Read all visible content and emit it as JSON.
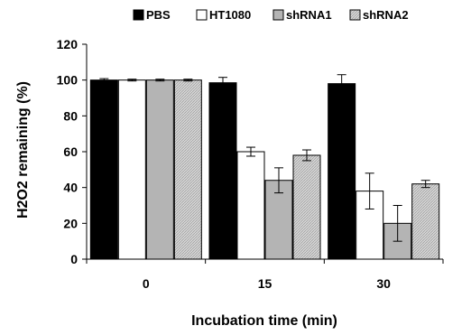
{
  "chart_data": {
    "type": "bar",
    "title": "",
    "xlabel": "Incubation time (min)",
    "ylabel": "H2O2 remaining (%)",
    "categories": [
      "0",
      "15",
      "30"
    ],
    "ylim": [
      0,
      120
    ],
    "yticks": [
      0,
      20,
      40,
      60,
      80,
      100,
      120
    ],
    "grid": false,
    "legend_position": "top",
    "series": [
      {
        "name": "PBS",
        "values": [
          100,
          98.5,
          98
        ],
        "errors": [
          0.8,
          3,
          5
        ],
        "color": "#000000",
        "pattern": "solid"
      },
      {
        "name": "HT1080",
        "values": [
          100,
          60,
          38
        ],
        "errors": [
          0.5,
          2.5,
          10
        ],
        "color": "#ffffff",
        "pattern": "solid"
      },
      {
        "name": "shRNA1",
        "values": [
          100,
          44,
          20
        ],
        "errors": [
          0.5,
          7,
          10
        ],
        "color": "#b4b4b4",
        "pattern": "solid"
      },
      {
        "name": "shRNA2",
        "values": [
          100,
          58,
          42
        ],
        "errors": [
          0.5,
          3,
          2
        ],
        "color": "#d2d2d2",
        "pattern": "hatch"
      }
    ]
  }
}
